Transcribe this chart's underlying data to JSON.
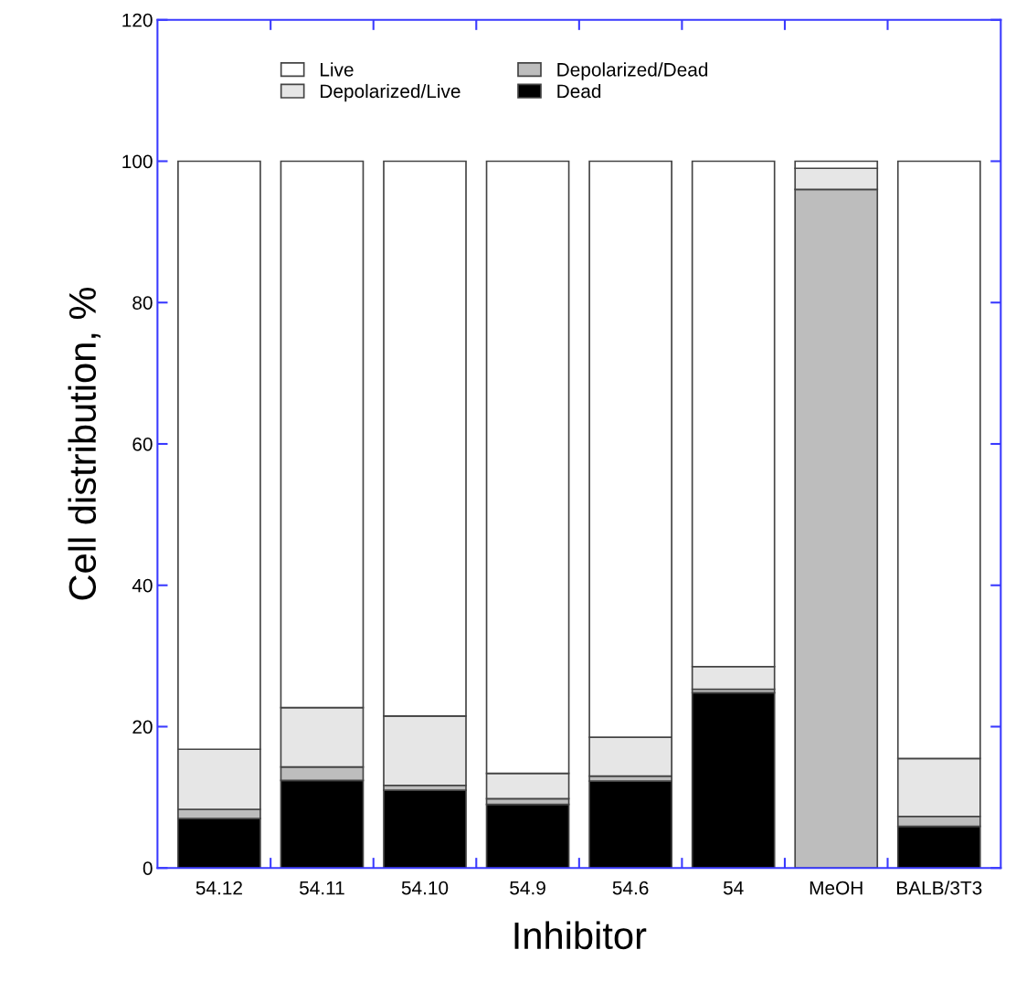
{
  "chart_data": {
    "type": "bar",
    "stacked": true,
    "xlabel": "Inhibitor",
    "ylabel": "Cell distribution, %",
    "categories": [
      "54.12",
      "54.11",
      "54.10",
      "54.9",
      "54.6",
      "54",
      "MeOH",
      "BALB/3T3"
    ],
    "series": [
      {
        "name": "Dead",
        "color": "#000000",
        "values": [
          7.0,
          12.4,
          11.0,
          9.0,
          12.3,
          24.8,
          0,
          5.9
        ]
      },
      {
        "name": "Depolarized/Dead",
        "color": "#bdbdbd",
        "values": [
          1.3,
          1.9,
          0.7,
          0.8,
          0.7,
          0.5,
          96.0,
          1.4
        ]
      },
      {
        "name": "Depolarized/Live",
        "color": "#e6e6e6",
        "values": [
          8.5,
          8.4,
          9.8,
          3.6,
          5.5,
          3.2,
          3.0,
          8.2
        ]
      },
      {
        "name": "Live",
        "color": "#ffffff",
        "values": [
          83.2,
          77.3,
          78.5,
          86.6,
          81.5,
          71.5,
          1.0,
          84.5
        ]
      }
    ],
    "ylim": [
      0,
      120
    ],
    "yticks": [
      0,
      20,
      40,
      60,
      80,
      100,
      120
    ],
    "grid": false,
    "legend": "top"
  }
}
